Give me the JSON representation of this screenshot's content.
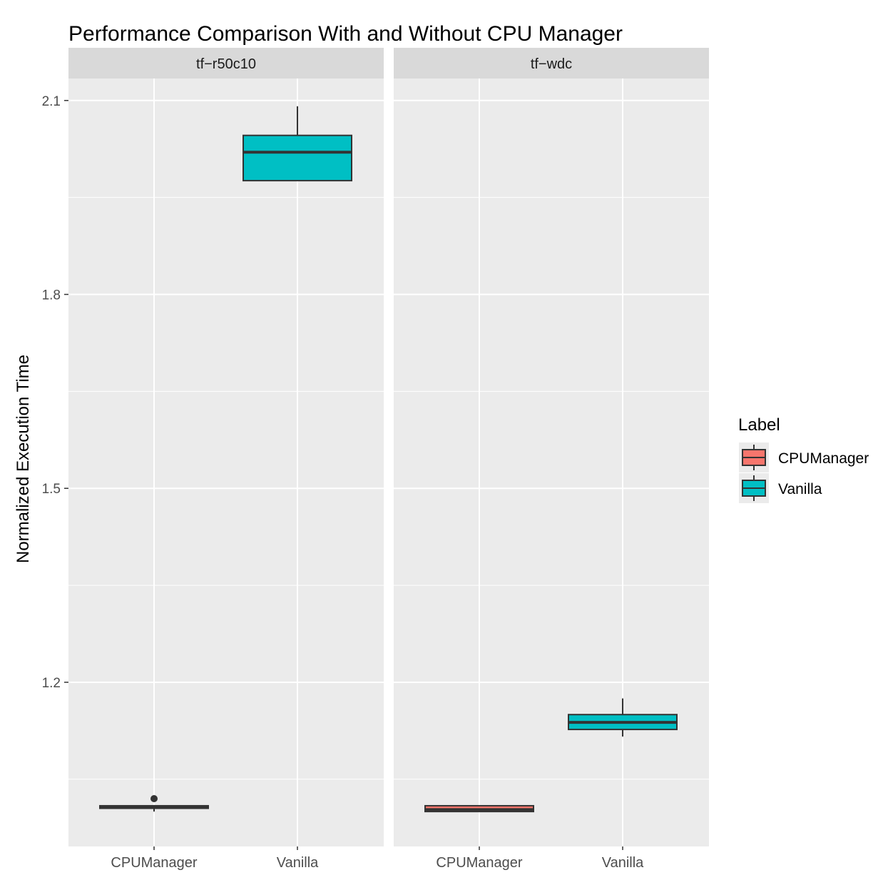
{
  "chart_data": {
    "type": "boxplot",
    "title": "Performance Comparison With and Without CPU Manager",
    "ylabel": "Normalized Execution Time",
    "xlabel": "",
    "ylim": [
      0.946,
      2.134
    ],
    "yticks": [
      1.2,
      1.5,
      1.8,
      2.1
    ],
    "ytick_labels": [
      "1.2",
      "1.5",
      "1.8",
      "2.1"
    ],
    "grid": true,
    "categories": [
      "CPUManager",
      "Vanilla"
    ],
    "legend": {
      "title": "Label",
      "position": "right",
      "entries": [
        "CPUManager",
        "Vanilla"
      ]
    },
    "colors": {
      "CPUManager": "#F8766D",
      "Vanilla": "#00BFC4"
    },
    "panels": [
      {
        "name": "tf−r50c10",
        "boxes": [
          {
            "label": "CPUManager",
            "min": 1.0,
            "q1": 1.005,
            "median": 1.007,
            "q3": 1.009,
            "max": 1.009,
            "outliers": [
              1.02
            ]
          },
          {
            "label": "Vanilla",
            "min": 1.976,
            "q1": 1.976,
            "median": 2.02,
            "q3": 2.046,
            "max": 2.091,
            "outliers": []
          }
        ]
      },
      {
        "name": "tf−wdc",
        "boxes": [
          {
            "label": "CPUManager",
            "min": 1.0,
            "q1": 1.0,
            "median": 1.003,
            "q3": 1.009,
            "max": 1.009,
            "outliers": []
          },
          {
            "label": "Vanilla",
            "min": 1.116,
            "q1": 1.127,
            "median": 1.138,
            "q3": 1.15,
            "max": 1.175,
            "outliers": []
          }
        ]
      }
    ]
  }
}
